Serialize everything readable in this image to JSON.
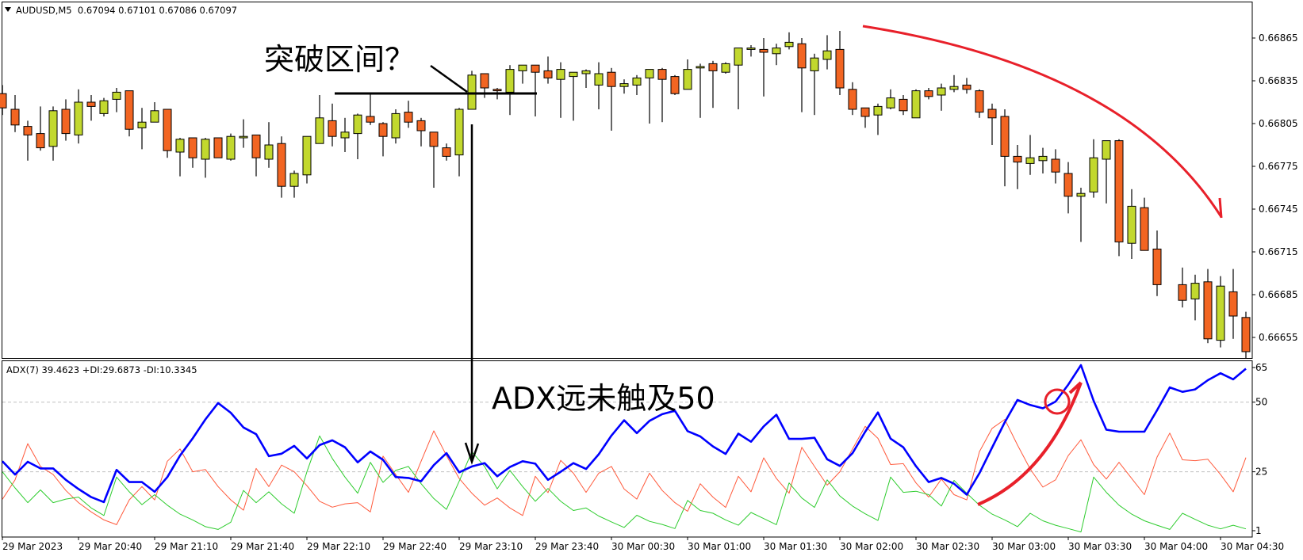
{
  "header": {
    "symbol_line": "AUDUSD,M5  0.67094 0.67101 0.67086 0.67097",
    "indicator_line": "ADX(7) 39.4623 +DI:29.6873 -DI:10.3345"
  },
  "annotations": {
    "breakout_question": "突破区间？",
    "adx_note": "ADX远未触及50"
  },
  "colors": {
    "bull": "#c2d82e",
    "bear": "#f26522",
    "adx": "#0000ff",
    "plus_di": "#ff5a3c",
    "minus_di": "#2ecc2e",
    "annotation_red": "#e8202a",
    "grid": "#c0c0c0"
  },
  "chart_data": [
    {
      "type": "candlestick",
      "symbol": "AUDUSD",
      "timeframe": "M5",
      "ylim": [
        0.6664,
        0.66895
      ],
      "y_ticks": [
        "0.66865",
        "0.66835",
        "0.66805",
        "0.66775",
        "0.66745",
        "0.66715",
        "0.66685",
        "0.66655"
      ],
      "x_tick_labels": [
        {
          "index": 0,
          "label": "29 Mar 2023"
        },
        {
          "index": 6,
          "label": "29 Mar 20:40"
        },
        {
          "index": 12,
          "label": "29 Mar 21:10"
        },
        {
          "index": 18,
          "label": "29 Mar 21:40"
        },
        {
          "index": 24,
          "label": "29 Mar 22:10"
        },
        {
          "index": 30,
          "label": "29 Mar 22:40"
        },
        {
          "index": 36,
          "label": "29 Mar 23:10"
        },
        {
          "index": 42,
          "label": "29 Mar 23:40"
        },
        {
          "index": 48,
          "label": "30 Mar 00:30"
        },
        {
          "index": 54,
          "label": "30 Mar 01:00"
        },
        {
          "index": 60,
          "label": "30 Mar 01:30"
        },
        {
          "index": 66,
          "label": "30 Mar 02:00"
        },
        {
          "index": 72,
          "label": "30 Mar 02:30"
        },
        {
          "index": 78,
          "label": "30 Mar 03:00"
        },
        {
          "index": 84,
          "label": "30 Mar 03:30"
        },
        {
          "index": 90,
          "label": "30 Mar 04:00"
        },
        {
          "index": 96,
          "label": "30 Mar 04:30"
        }
      ],
      "ohlc_fields": [
        "open",
        "high",
        "low",
        "close"
      ],
      "ohlc": [
        [
          0.66826,
          0.66832,
          0.66811,
          0.66816
        ],
        [
          0.66815,
          0.66825,
          0.66799,
          0.66804
        ],
        [
          0.66803,
          0.66807,
          0.66779,
          0.66797
        ],
        [
          0.66798,
          0.66817,
          0.66786,
          0.66788
        ],
        [
          0.66789,
          0.66817,
          0.66779,
          0.66814
        ],
        [
          0.66815,
          0.66822,
          0.66793,
          0.66798
        ],
        [
          0.66797,
          0.66829,
          0.66791,
          0.6682
        ],
        [
          0.6682,
          0.66825,
          0.66807,
          0.66817
        ],
        [
          0.66812,
          0.66823,
          0.6681,
          0.66821
        ],
        [
          0.66822,
          0.6683,
          0.66813,
          0.66827
        ],
        [
          0.66828,
          0.66828,
          0.66796,
          0.66801
        ],
        [
          0.66802,
          0.66816,
          0.66787,
          0.66806
        ],
        [
          0.66806,
          0.6682,
          0.66806,
          0.66814
        ],
        [
          0.66815,
          0.66815,
          0.66781,
          0.66786
        ],
        [
          0.66785,
          0.66795,
          0.66768,
          0.66794
        ],
        [
          0.66795,
          0.66795,
          0.66774,
          0.66781
        ],
        [
          0.6678,
          0.66795,
          0.66767,
          0.66794
        ],
        [
          0.66795,
          0.66795,
          0.66781,
          0.66781
        ],
        [
          0.6678,
          0.66798,
          0.66779,
          0.66796
        ],
        [
          0.66795,
          0.66808,
          0.66788,
          0.66796
        ],
        [
          0.66797,
          0.66797,
          0.66768,
          0.66781
        ],
        [
          0.6678,
          0.66806,
          0.66774,
          0.6679
        ],
        [
          0.66791,
          0.66796,
          0.66753,
          0.66761
        ],
        [
          0.66761,
          0.66772,
          0.66753,
          0.6677
        ],
        [
          0.66769,
          0.66796,
          0.66763,
          0.66796
        ],
        [
          0.66791,
          0.66825,
          0.66791,
          0.66809
        ],
        [
          0.66807,
          0.66819,
          0.66789,
          0.66796
        ],
        [
          0.66795,
          0.66809,
          0.66785,
          0.66799
        ],
        [
          0.66798,
          0.66812,
          0.6678,
          0.66811
        ],
        [
          0.6681,
          0.66826,
          0.66804,
          0.66806
        ],
        [
          0.66805,
          0.66806,
          0.66782,
          0.66796
        ],
        [
          0.66795,
          0.66815,
          0.66791,
          0.66812
        ],
        [
          0.66813,
          0.66821,
          0.66802,
          0.66806
        ],
        [
          0.66807,
          0.66809,
          0.66789,
          0.668
        ],
        [
          0.66799,
          0.66799,
          0.6676,
          0.66789
        ],
        [
          0.66788,
          0.66791,
          0.66779,
          0.66782
        ],
        [
          0.66783,
          0.66816,
          0.66768,
          0.66815
        ],
        [
          0.66815,
          0.66842,
          0.66815,
          0.66839
        ],
        [
          0.6684,
          0.6684,
          0.66823,
          0.6683
        ],
        [
          0.66829,
          0.6683,
          0.66822,
          0.66828
        ],
        [
          0.66827,
          0.66846,
          0.66811,
          0.66843
        ],
        [
          0.66842,
          0.66846,
          0.66833,
          0.66846
        ],
        [
          0.66846,
          0.66846,
          0.6681,
          0.66841
        ],
        [
          0.66842,
          0.66852,
          0.66833,
          0.66837
        ],
        [
          0.66836,
          0.66848,
          0.66809,
          0.66843
        ],
        [
          0.66838,
          0.66841,
          0.66807,
          0.66841
        ],
        [
          0.6684,
          0.66843,
          0.6683,
          0.66842
        ],
        [
          0.66832,
          0.66848,
          0.66815,
          0.6684
        ],
        [
          0.66841,
          0.66844,
          0.668,
          0.66831
        ],
        [
          0.66831,
          0.66836,
          0.66826,
          0.66833
        ],
        [
          0.66832,
          0.66839,
          0.66825,
          0.66837
        ],
        [
          0.66837,
          0.66843,
          0.66805,
          0.66843
        ],
        [
          0.66843,
          0.66844,
          0.66806,
          0.66836
        ],
        [
          0.66838,
          0.66839,
          0.66825,
          0.66826
        ],
        [
          0.66829,
          0.6685,
          0.66829,
          0.66843
        ],
        [
          0.66844,
          0.66847,
          0.66809,
          0.66845
        ],
        [
          0.66847,
          0.66849,
          0.66816,
          0.66842
        ],
        [
          0.66841,
          0.66848,
          0.6684,
          0.66847
        ],
        [
          0.66846,
          0.66858,
          0.66815,
          0.66858
        ],
        [
          0.66857,
          0.6686,
          0.66852,
          0.66858
        ],
        [
          0.66857,
          0.66865,
          0.66824,
          0.66855
        ],
        [
          0.66854,
          0.66861,
          0.66846,
          0.66858
        ],
        [
          0.66859,
          0.66869,
          0.66857,
          0.66862
        ],
        [
          0.66861,
          0.66865,
          0.66813,
          0.66844
        ],
        [
          0.66842,
          0.66854,
          0.66811,
          0.66851
        ],
        [
          0.6685,
          0.66867,
          0.66843,
          0.66856
        ],
        [
          0.66857,
          0.6687,
          0.66825,
          0.6683
        ],
        [
          0.66829,
          0.66834,
          0.66811,
          0.66815
        ],
        [
          0.66816,
          0.66816,
          0.66802,
          0.6681
        ],
        [
          0.66811,
          0.66819,
          0.66797,
          0.66817
        ],
        [
          0.66816,
          0.66829,
          0.66815,
          0.66823
        ],
        [
          0.66822,
          0.66825,
          0.66811,
          0.66814
        ],
        [
          0.66809,
          0.66829,
          0.66809,
          0.66828
        ],
        [
          0.66828,
          0.6683,
          0.66822,
          0.66824
        ],
        [
          0.66825,
          0.66833,
          0.66814,
          0.6683
        ],
        [
          0.66829,
          0.66839,
          0.66827,
          0.66831
        ],
        [
          0.66832,
          0.66837,
          0.66826,
          0.66829
        ],
        [
          0.66828,
          0.66829,
          0.66809,
          0.66813
        ],
        [
          0.66815,
          0.66819,
          0.6679,
          0.66809
        ],
        [
          0.6681,
          0.66815,
          0.66761,
          0.66782
        ],
        [
          0.66782,
          0.6679,
          0.66759,
          0.66778
        ],
        [
          0.66777,
          0.66797,
          0.66769,
          0.66781
        ],
        [
          0.66779,
          0.66788,
          0.6677,
          0.66782
        ],
        [
          0.6678,
          0.66787,
          0.66763,
          0.66771
        ],
        [
          0.6677,
          0.66778,
          0.66742,
          0.66754
        ],
        [
          0.66754,
          0.6676,
          0.66722,
          0.66756
        ],
        [
          0.66757,
          0.66794,
          0.66753,
          0.66781
        ],
        [
          0.6678,
          0.66793,
          0.66749,
          0.66793
        ],
        [
          0.66793,
          0.66794,
          0.66712,
          0.66722
        ],
        [
          0.66721,
          0.66759,
          0.6671,
          0.66747
        ],
        [
          0.66746,
          0.66753,
          0.66716,
          0.66716
        ],
        [
          0.66717,
          0.6673,
          0.66684,
          0.66692
        ],
        null,
        [
          0.66692,
          0.66704,
          0.66676,
          0.66681
        ],
        [
          0.66682,
          0.66699,
          0.66667,
          0.66693
        ],
        [
          0.66694,
          0.66703,
          0.66651,
          0.66654
        ],
        [
          0.66653,
          0.66698,
          0.66648,
          0.66691
        ],
        [
          0.66687,
          0.66703,
          0.66654,
          0.6667
        ],
        [
          0.66669,
          0.66673,
          0.6664,
          0.66645
        ]
      ]
    },
    {
      "type": "line",
      "indicator": "ADX(7)",
      "ylim": [
        1,
        65
      ],
      "y_ticks": [
        "65",
        "50",
        "25",
        "1"
      ],
      "grid_levels": [
        50,
        25
      ],
      "series": [
        {
          "name": "ADX",
          "values": [
            28.8,
            24.0,
            28.6,
            26.2,
            26.2,
            22.1,
            18.8,
            15.9,
            14.1,
            25.7,
            21.3,
            21.3,
            17.8,
            23.1,
            30.8,
            37.0,
            43.8,
            49.7,
            46.2,
            40.9,
            38.5,
            30.6,
            31.5,
            34.3,
            29.8,
            34.6,
            36.3,
            33.8,
            28.4,
            32.3,
            29.3,
            23.1,
            22.8,
            21.6,
            27.4,
            31.7,
            24.8,
            26.9,
            28.1,
            23.4,
            26.7,
            28.8,
            27.9,
            22.1,
            25.0,
            28.1,
            26.0,
            31.3,
            38.0,
            43.5,
            38.9,
            43.3,
            45.7,
            46.9,
            39.6,
            37.7,
            34.1,
            31.4,
            38.7,
            35.8,
            41.3,
            45.5,
            36.8,
            36.8,
            37.2,
            29.5,
            27.1,
            31.7,
            39.4,
            46.3,
            36.9,
            33.8,
            27.0,
            21.3,
            22.8,
            20.7,
            16.8,
            24.5,
            33.7,
            42.8,
            50.8,
            49.0,
            47.8,
            50.2,
            56.3,
            63.3,
            50.5,
            40.1,
            39.4,
            39.4,
            39.4,
            47.1,
            55.3,
            53.7,
            54.6,
            57.9,
            60.4,
            58.2,
            62.0
          ]
        },
        {
          "name": "+DI",
          "values": [
            15.1,
            22.1,
            35.1,
            26.9,
            24.0,
            18.3,
            13.9,
            10.6,
            7.7,
            6.0,
            14.9,
            19.7,
            14.9,
            28.8,
            33.2,
            25.0,
            25.8,
            19.7,
            14.9,
            11.2,
            26.2,
            19.7,
            27.4,
            25.0,
            20.0,
            14.4,
            12.3,
            13.5,
            13.9,
            10.6,
            30.6,
            24.0,
            17.6,
            28.8,
            39.7,
            30.8,
            22.6,
            17.3,
            13.0,
            15.6,
            12.0,
            9.3,
            23.4,
            17.5,
            29.1,
            24.5,
            17.6,
            24.5,
            26.9,
            18.8,
            15.2,
            24.5,
            18.3,
            13.9,
            10.8,
            20.7,
            15.9,
            12.2,
            23.4,
            17.8,
            30.0,
            22.6,
            17.3,
            33.8,
            26.9,
            20.2,
            25.0,
            33.2,
            41.3,
            37.0,
            27.6,
            27.9,
            21.0,
            15.9,
            22.4,
            16.8,
            14.9,
            32.2,
            40.6,
            43.8,
            34.6,
            26.0,
            19.5,
            22.1,
            30.8,
            36.5,
            27.6,
            22.4,
            28.4,
            22.6,
            16.8,
            30.3,
            38.9,
            29.3,
            29.0,
            29.5,
            24.0,
            17.8,
            30.1
          ]
        },
        {
          "name": "-DI",
          "values": [
            25.0,
            19.2,
            13.9,
            18.5,
            13.9,
            15.2,
            15.9,
            12.0,
            9.3,
            23.1,
            17.8,
            13.2,
            16.8,
            13.0,
            9.8,
            7.7,
            5.3,
            4.3,
            6.9,
            18.3,
            13.9,
            17.8,
            13.5,
            10.1,
            25.0,
            37.9,
            29.8,
            23.1,
            17.3,
            28.4,
            21.2,
            25.5,
            26.9,
            20.7,
            15.4,
            11.5,
            21.6,
            32.2,
            26.9,
            18.9,
            25.5,
            19.7,
            14.4,
            19.0,
            14.4,
            11.1,
            12.0,
            9.1,
            7.0,
            5.0,
            9.4,
            7.2,
            6.1,
            4.6,
            14.7,
            11.1,
            10.1,
            7.7,
            5.8,
            10.4,
            8.2,
            6.0,
            21.0,
            15.6,
            12.2,
            22.1,
            16.3,
            12.7,
            9.9,
            7.5,
            23.1,
            17.6,
            18.0,
            16.8,
            12.7,
            21.9,
            17.3,
            13.0,
            9.8,
            7.7,
            5.3,
            10.1,
            7.4,
            5.8,
            4.6,
            3.4,
            23.1,
            17.6,
            13.0,
            9.8,
            7.4,
            5.8,
            4.3,
            10.1,
            7.9,
            5.8,
            4.5,
            5.8,
            4.5
          ]
        }
      ]
    }
  ]
}
